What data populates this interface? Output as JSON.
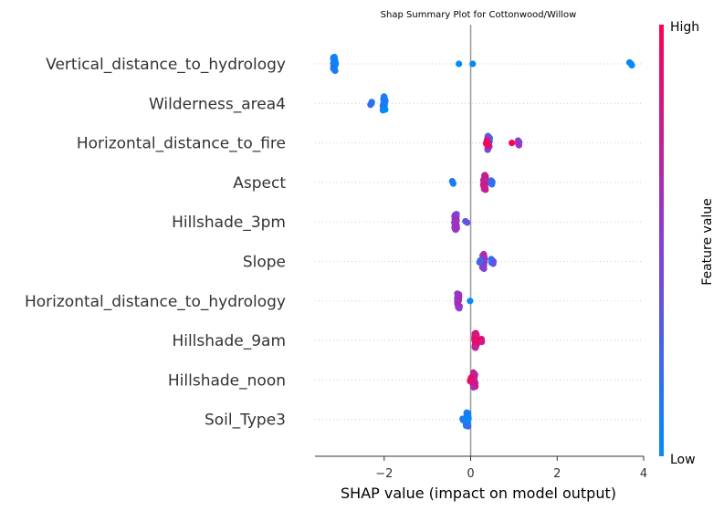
{
  "chart_data": {
    "type": "scatter",
    "title": "Shap Summary Plot for Cottonwood/Willow",
    "xlabel": "SHAP value (impact on model output)",
    "ylabel": "",
    "xlim": [
      -3.6,
      4.0
    ],
    "xticks": [
      {
        "value": -2,
        "label": "−2"
      },
      {
        "value": 0,
        "label": "0"
      },
      {
        "value": 2,
        "label": "2"
      },
      {
        "value": 4,
        "label": "4"
      }
    ],
    "grid": "dotted horizontal lines per feature",
    "colorbar": {
      "label": "Feature value",
      "high_label": "High",
      "low_label": "Low",
      "low_color": "#008bfb",
      "high_color": "#ff0052"
    },
    "features": [
      {
        "name": "Vertical_distance_to_hydrology",
        "clusters": [
          {
            "x": -3.15,
            "spread": 0.3,
            "n": 26,
            "color": 0.05
          },
          {
            "x": -0.25,
            "spread": 0.02,
            "n": 1,
            "color": 0.05
          },
          {
            "x": 0.05,
            "spread": 0.02,
            "n": 1,
            "color": 0.05
          },
          {
            "x": 3.7,
            "spread": 0.06,
            "n": 3,
            "color": 0.05
          }
        ]
      },
      {
        "name": "Wilderness_area4",
        "clusters": [
          {
            "x": -2.0,
            "spread": 0.3,
            "n": 22,
            "color": 0.05
          },
          {
            "x": -2.3,
            "spread": 0.06,
            "n": 3,
            "color": 0.05
          }
        ]
      },
      {
        "name": "Horizontal_distance_to_fire",
        "clusters": [
          {
            "x": 0.42,
            "spread": 0.3,
            "n": 22,
            "color": 0.4
          },
          {
            "x": 0.38,
            "spread": 0.12,
            "n": 6,
            "color": 0.9
          },
          {
            "x": 1.1,
            "spread": 0.1,
            "n": 4,
            "color": 0.45
          },
          {
            "x": 0.95,
            "spread": 0.02,
            "n": 1,
            "color": 1.0
          }
        ]
      },
      {
        "name": "Aspect",
        "clusters": [
          {
            "x": 0.32,
            "spread": 0.32,
            "n": 22,
            "color": 0.75
          },
          {
            "x": 0.5,
            "spread": 0.08,
            "n": 4,
            "color": 0.3
          },
          {
            "x": -0.4,
            "spread": 0.05,
            "n": 2,
            "color": 0.05
          }
        ]
      },
      {
        "name": "Hillshade_3pm",
        "clusters": [
          {
            "x": -0.35,
            "spread": 0.34,
            "n": 24,
            "color": 0.55
          },
          {
            "x": -0.1,
            "spread": 0.03,
            "n": 2,
            "color": 0.3
          }
        ]
      },
      {
        "name": "Slope",
        "clusters": [
          {
            "x": 0.3,
            "spread": 0.32,
            "n": 22,
            "color": 0.6
          },
          {
            "x": 0.5,
            "spread": 0.1,
            "n": 5,
            "color": 0.2
          },
          {
            "x": 0.2,
            "spread": 0.04,
            "n": 2,
            "color": 0.1
          }
        ]
      },
      {
        "name": "Horizontal_distance_to_hydrology",
        "clusters": [
          {
            "x": -0.28,
            "spread": 0.32,
            "n": 22,
            "color": 0.6
          },
          {
            "x": -0.02,
            "spread": 0.02,
            "n": 1,
            "color": 0.05
          }
        ]
      },
      {
        "name": "Hillshade_9am",
        "clusters": [
          {
            "x": 0.12,
            "spread": 0.32,
            "n": 26,
            "color": 0.85
          },
          {
            "x": 0.25,
            "spread": 0.06,
            "n": 3,
            "color": 0.9
          }
        ]
      },
      {
        "name": "Hillshade_noon",
        "clusters": [
          {
            "x": 0.08,
            "spread": 0.32,
            "n": 24,
            "color": 0.75
          },
          {
            "x": 0.0,
            "spread": 0.1,
            "n": 5,
            "color": 1.0
          }
        ]
      },
      {
        "name": "Soil_Type3",
        "clusters": [
          {
            "x": -0.08,
            "spread": 0.3,
            "n": 24,
            "color": 0.05
          },
          {
            "x": -0.18,
            "spread": 0.03,
            "n": 2,
            "color": 0.2
          }
        ]
      }
    ]
  }
}
